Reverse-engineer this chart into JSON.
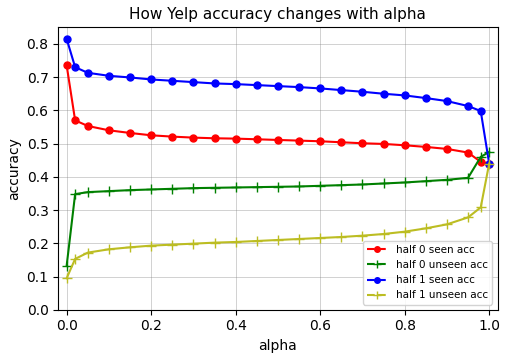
{
  "title": "How Yelp accuracy changes with alpha",
  "xlabel": "alpha",
  "ylabel": "accuracy",
  "xlim": [
    -0.02,
    1.02
  ],
  "ylim": [
    0.0,
    0.85
  ],
  "legend_entries": [
    "half 0 seen acc",
    "half 0 unseen acc",
    "half 1 seen acc",
    "half 1 unseen acc"
  ],
  "half0_seen": {
    "color": "#FF0000",
    "marker": "o",
    "linestyle": "-",
    "alpha_vals": [
      0.0,
      0.02,
      0.05,
      0.1,
      0.15,
      0.2,
      0.25,
      0.3,
      0.35,
      0.4,
      0.45,
      0.5,
      0.55,
      0.6,
      0.65,
      0.7,
      0.75,
      0.8,
      0.85,
      0.9,
      0.95,
      0.98,
      1.0
    ],
    "acc_vals": [
      0.735,
      0.57,
      0.553,
      0.54,
      0.532,
      0.525,
      0.521,
      0.518,
      0.516,
      0.515,
      0.513,
      0.511,
      0.509,
      0.507,
      0.504,
      0.501,
      0.499,
      0.495,
      0.49,
      0.484,
      0.473,
      0.445,
      0.44
    ]
  },
  "half0_unseen": {
    "color": "#008000",
    "marker": "+",
    "linestyle": "-",
    "alpha_vals": [
      0.0,
      0.02,
      0.05,
      0.1,
      0.15,
      0.2,
      0.25,
      0.3,
      0.35,
      0.4,
      0.45,
      0.5,
      0.55,
      0.6,
      0.65,
      0.7,
      0.75,
      0.8,
      0.85,
      0.9,
      0.95,
      0.98,
      1.0
    ],
    "acc_vals": [
      0.133,
      0.348,
      0.354,
      0.357,
      0.36,
      0.362,
      0.364,
      0.366,
      0.367,
      0.368,
      0.369,
      0.37,
      0.371,
      0.373,
      0.375,
      0.377,
      0.38,
      0.383,
      0.387,
      0.391,
      0.397,
      0.46,
      0.475
    ]
  },
  "half1_seen": {
    "color": "#0000FF",
    "marker": "o",
    "linestyle": "-",
    "alpha_vals": [
      0.0,
      0.02,
      0.05,
      0.1,
      0.15,
      0.2,
      0.25,
      0.3,
      0.35,
      0.4,
      0.45,
      0.5,
      0.55,
      0.6,
      0.65,
      0.7,
      0.75,
      0.8,
      0.85,
      0.9,
      0.95,
      0.98,
      1.0
    ],
    "acc_vals": [
      0.815,
      0.73,
      0.713,
      0.704,
      0.699,
      0.693,
      0.689,
      0.685,
      0.681,
      0.679,
      0.676,
      0.673,
      0.67,
      0.666,
      0.661,
      0.656,
      0.65,
      0.645,
      0.637,
      0.628,
      0.613,
      0.598,
      0.44
    ]
  },
  "half1_unseen": {
    "color": "#BCBD22",
    "marker": "+",
    "linestyle": "-",
    "alpha_vals": [
      0.0,
      0.02,
      0.05,
      0.1,
      0.15,
      0.2,
      0.25,
      0.3,
      0.35,
      0.4,
      0.45,
      0.5,
      0.55,
      0.6,
      0.65,
      0.7,
      0.75,
      0.8,
      0.85,
      0.9,
      0.95,
      0.98,
      1.0
    ],
    "acc_vals": [
      0.095,
      0.153,
      0.172,
      0.182,
      0.188,
      0.193,
      0.196,
      0.199,
      0.202,
      0.204,
      0.207,
      0.21,
      0.213,
      0.216,
      0.219,
      0.223,
      0.228,
      0.235,
      0.245,
      0.257,
      0.278,
      0.308,
      0.44
    ]
  },
  "legend_dash_colors": [
    "#FF0000",
    "#008000",
    "#0000FF",
    "#BCBD22"
  ],
  "figsize": [
    5.08,
    3.6
  ],
  "dpi": 100
}
